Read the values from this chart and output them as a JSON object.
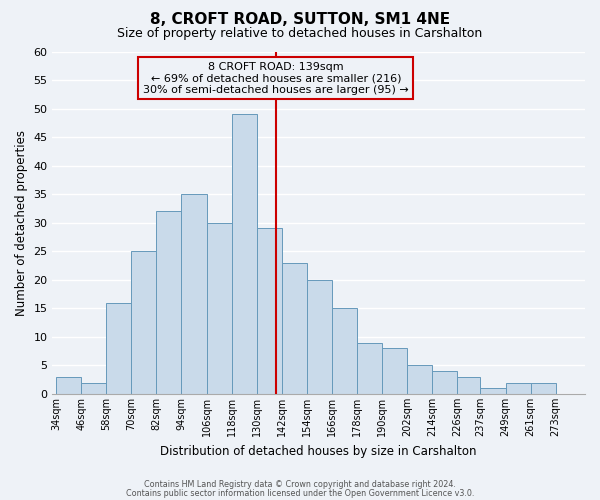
{
  "title": "8, CROFT ROAD, SUTTON, SM1 4NE",
  "subtitle": "Size of property relative to detached houses in Carshalton",
  "xlabel": "Distribution of detached houses by size in Carshalton",
  "ylabel": "Number of detached properties",
  "footnote1": "Contains HM Land Registry data © Crown copyright and database right 2024.",
  "footnote2": "Contains public sector information licensed under the Open Government Licence v3.0.",
  "bin_labels": [
    "34sqm",
    "46sqm",
    "58sqm",
    "70sqm",
    "82sqm",
    "94sqm",
    "106sqm",
    "118sqm",
    "130sqm",
    "142sqm",
    "154sqm",
    "166sqm",
    "178sqm",
    "190sqm",
    "202sqm",
    "214sqm",
    "226sqm",
    "237sqm",
    "249sqm",
    "261sqm",
    "273sqm"
  ],
  "bin_edges": [
    34,
    46,
    58,
    70,
    82,
    94,
    106,
    118,
    130,
    142,
    154,
    166,
    178,
    190,
    202,
    214,
    226,
    237,
    249,
    261,
    273,
    285
  ],
  "counts": [
    3,
    2,
    16,
    25,
    32,
    35,
    30,
    49,
    29,
    23,
    20,
    15,
    9,
    8,
    5,
    4,
    3,
    1,
    2,
    2,
    0
  ],
  "bar_color": "#c9daea",
  "bar_edgecolor": "#6699bb",
  "property_size": 139,
  "vline_color": "#cc0000",
  "annotation_title": "8 CROFT ROAD: 139sqm",
  "annotation_line1": "← 69% of detached houses are smaller (216)",
  "annotation_line2": "30% of semi-detached houses are larger (95) →",
  "annotation_box_edgecolor": "#cc0000",
  "ylim": [
    0,
    60
  ],
  "yticks": [
    0,
    5,
    10,
    15,
    20,
    25,
    30,
    35,
    40,
    45,
    50,
    55,
    60
  ],
  "background_color": "#eef2f7",
  "grid_color": "#ffffff",
  "title_fontsize": 11,
  "subtitle_fontsize": 9
}
